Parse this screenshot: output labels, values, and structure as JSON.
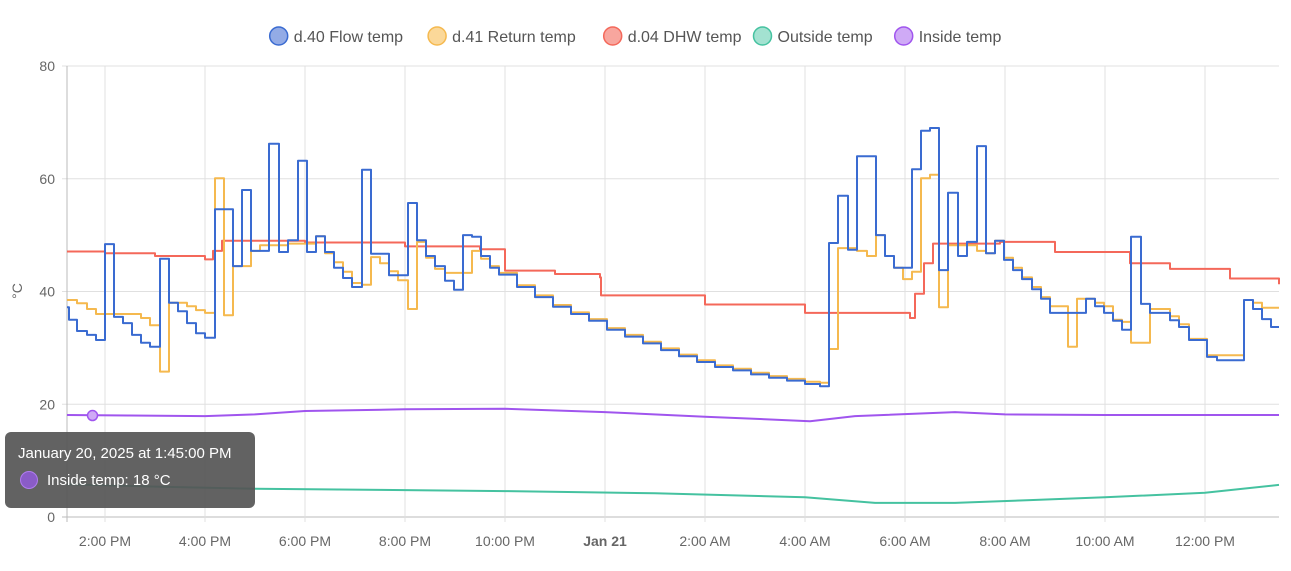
{
  "chart_data": {
    "type": "line",
    "step": true,
    "title": "",
    "xlabel": "",
    "ylabel": "°C",
    "x_unit": "hours since Jan 20, 2025 12:00 PM",
    "xlim": [
      1.24,
      25.48
    ],
    "ylim": [
      0,
      80
    ],
    "grid": true,
    "legend_position": "top-center",
    "y_ticks": [
      {
        "v": 0,
        "label": "0"
      },
      {
        "v": 20,
        "label": "20"
      },
      {
        "v": 40,
        "label": "40"
      },
      {
        "v": 60,
        "label": "60"
      },
      {
        "v": 80,
        "label": "80"
      }
    ],
    "x_ticks": [
      {
        "v": 2,
        "label": "2:00 PM"
      },
      {
        "v": 4,
        "label": "4:00 PM"
      },
      {
        "v": 6,
        "label": "6:00 PM"
      },
      {
        "v": 8,
        "label": "8:00 PM"
      },
      {
        "v": 10,
        "label": "10:00 PM"
      },
      {
        "v": 12,
        "label": "Jan 21",
        "bold": true
      },
      {
        "v": 14,
        "label": "2:00 AM"
      },
      {
        "v": 16,
        "label": "4:00 AM"
      },
      {
        "v": 18,
        "label": "6:00 AM"
      },
      {
        "v": 20,
        "label": "8:00 AM"
      },
      {
        "v": 22,
        "label": "10:00 AM"
      },
      {
        "v": 24,
        "label": "12:00 PM"
      }
    ],
    "series": [
      {
        "name": "d.40 Flow temp",
        "color": "#3a6bd1",
        "fill": "#93abe6",
        "points": [
          [
            1.24,
            37.2
          ],
          [
            1.28,
            35
          ],
          [
            1.44,
            33
          ],
          [
            1.64,
            32.3
          ],
          [
            1.82,
            31.4
          ],
          [
            2.0,
            48.4
          ],
          [
            2.18,
            35.5
          ],
          [
            2.36,
            34.4
          ],
          [
            2.54,
            32.3
          ],
          [
            2.72,
            30.9
          ],
          [
            2.9,
            30.2
          ],
          [
            3.1,
            45.8
          ],
          [
            3.28,
            38
          ],
          [
            3.46,
            36.5
          ],
          [
            3.64,
            34.4
          ],
          [
            3.82,
            32.6
          ],
          [
            4.0,
            31.8
          ],
          [
            4.2,
            54.6
          ],
          [
            4.56,
            44.5
          ],
          [
            4.74,
            58
          ],
          [
            4.92,
            47.2
          ],
          [
            5.28,
            66.2
          ],
          [
            5.48,
            47
          ],
          [
            5.66,
            49.1
          ],
          [
            5.86,
            63.2
          ],
          [
            6.04,
            47
          ],
          [
            6.22,
            49.8
          ],
          [
            6.4,
            47
          ],
          [
            6.58,
            44.2
          ],
          [
            6.76,
            42.4
          ],
          [
            6.94,
            40.8
          ],
          [
            7.14,
            61.6
          ],
          [
            7.32,
            46.7
          ],
          [
            7.68,
            42.9
          ],
          [
            8.06,
            55.7
          ],
          [
            8.24,
            49.1
          ],
          [
            8.42,
            46.3
          ],
          [
            8.6,
            44.5
          ],
          [
            8.8,
            41.9
          ],
          [
            8.98,
            40.3
          ],
          [
            9.16,
            50
          ],
          [
            9.34,
            49.7
          ],
          [
            9.52,
            46.3
          ],
          [
            9.7,
            44.2
          ],
          [
            9.88,
            43
          ],
          [
            10.24,
            40.8
          ],
          [
            10.6,
            39
          ],
          [
            10.96,
            37.3
          ],
          [
            11.32,
            36
          ],
          [
            11.68,
            34.8
          ],
          [
            12.04,
            33.2
          ],
          [
            12.4,
            32
          ],
          [
            12.76,
            30.8
          ],
          [
            13.12,
            29.6
          ],
          [
            13.48,
            28.5
          ],
          [
            13.84,
            27.5
          ],
          [
            14.2,
            26.6
          ],
          [
            14.56,
            26
          ],
          [
            14.92,
            25.3
          ],
          [
            15.28,
            24.7
          ],
          [
            15.64,
            24.2
          ],
          [
            16.0,
            23.6
          ],
          [
            16.3,
            23.2
          ],
          [
            16.48,
            48.6
          ],
          [
            16.66,
            57
          ],
          [
            16.86,
            47.4
          ],
          [
            17.04,
            64
          ],
          [
            17.42,
            50
          ],
          [
            17.6,
            46.3
          ],
          [
            17.78,
            44.2
          ],
          [
            18.14,
            61.7
          ],
          [
            18.32,
            68.5
          ],
          [
            18.5,
            69
          ],
          [
            18.68,
            43.8
          ],
          [
            18.86,
            57.5
          ],
          [
            19.06,
            46.3
          ],
          [
            19.24,
            48.8
          ],
          [
            19.44,
            65.8
          ],
          [
            19.62,
            46.8
          ],
          [
            19.8,
            49
          ],
          [
            19.98,
            45.6
          ],
          [
            20.16,
            43.8
          ],
          [
            20.34,
            42.2
          ],
          [
            20.54,
            40.4
          ],
          [
            20.72,
            38.7
          ],
          [
            20.9,
            36.2
          ],
          [
            21.62,
            38.7
          ],
          [
            21.8,
            37.4
          ],
          [
            21.98,
            36.2
          ],
          [
            22.16,
            34.8
          ],
          [
            22.34,
            33.2
          ],
          [
            22.52,
            49.7
          ],
          [
            22.72,
            37.8
          ],
          [
            22.9,
            36.2
          ],
          [
            23.3,
            34.9
          ],
          [
            23.48,
            33.7
          ],
          [
            23.68,
            31.4
          ],
          [
            24.04,
            28.4
          ],
          [
            24.24,
            27.8
          ],
          [
            24.78,
            38.5
          ],
          [
            24.96,
            36.9
          ],
          [
            25.14,
            35.1
          ],
          [
            25.32,
            33.7
          ]
        ]
      },
      {
        "name": "d.41 Return temp",
        "color": "#f5b94f",
        "fill": "#fbd899",
        "points": [
          [
            1.24,
            38.5
          ],
          [
            1.44,
            37.9
          ],
          [
            1.64,
            36.9
          ],
          [
            1.82,
            36
          ],
          [
            2.72,
            35.3
          ],
          [
            2.9,
            34
          ],
          [
            3.1,
            25.8
          ],
          [
            3.28,
            38
          ],
          [
            3.64,
            37.4
          ],
          [
            3.82,
            36.7
          ],
          [
            4.0,
            36.2
          ],
          [
            4.2,
            60.1
          ],
          [
            4.38,
            35.8
          ],
          [
            4.56,
            44.5
          ],
          [
            4.92,
            47.2
          ],
          [
            5.1,
            48.2
          ],
          [
            5.66,
            48.5
          ],
          [
            6.04,
            48.5
          ],
          [
            6.22,
            49.8
          ],
          [
            6.4,
            46.8
          ],
          [
            6.58,
            45.2
          ],
          [
            6.76,
            43.5
          ],
          [
            6.94,
            41.5
          ],
          [
            7.14,
            41.2
          ],
          [
            7.32,
            46.1
          ],
          [
            7.5,
            45
          ],
          [
            7.68,
            43.6
          ],
          [
            7.86,
            42
          ],
          [
            8.06,
            36.9
          ],
          [
            8.24,
            48.8
          ],
          [
            8.42,
            46
          ],
          [
            8.6,
            44
          ],
          [
            8.8,
            43.3
          ],
          [
            9.34,
            47.2
          ],
          [
            9.52,
            45.8
          ],
          [
            9.7,
            44.5
          ],
          [
            9.88,
            43.3
          ],
          [
            10.24,
            41.1
          ],
          [
            10.6,
            39.3
          ],
          [
            10.96,
            37.6
          ],
          [
            11.32,
            36.3
          ],
          [
            11.68,
            35.1
          ],
          [
            12.04,
            33.5
          ],
          [
            12.4,
            32.3
          ],
          [
            12.76,
            31.1
          ],
          [
            13.12,
            29.9
          ],
          [
            13.48,
            28.8
          ],
          [
            13.84,
            27.8
          ],
          [
            14.2,
            26.9
          ],
          [
            14.56,
            26.3
          ],
          [
            14.92,
            25.6
          ],
          [
            15.28,
            25
          ],
          [
            15.64,
            24.5
          ],
          [
            16.0,
            24
          ],
          [
            16.3,
            23.8
          ],
          [
            16.48,
            29.8
          ],
          [
            16.66,
            47.7
          ],
          [
            17.04,
            47.2
          ],
          [
            17.24,
            46.3
          ],
          [
            17.42,
            50
          ],
          [
            17.6,
            46.3
          ],
          [
            17.78,
            44.2
          ],
          [
            17.96,
            42.2
          ],
          [
            18.14,
            43.5
          ],
          [
            18.32,
            60.1
          ],
          [
            18.5,
            60.7
          ],
          [
            18.68,
            37.2
          ],
          [
            18.86,
            48.2
          ],
          [
            19.44,
            47.2
          ],
          [
            19.62,
            46.8
          ],
          [
            19.8,
            49
          ],
          [
            19.98,
            46
          ],
          [
            20.16,
            44.2
          ],
          [
            20.34,
            42.5
          ],
          [
            20.54,
            40.8
          ],
          [
            20.72,
            39
          ],
          [
            20.9,
            37.4
          ],
          [
            21.26,
            30.2
          ],
          [
            21.44,
            38.7
          ],
          [
            21.8,
            38
          ],
          [
            21.98,
            37.4
          ],
          [
            22.16,
            35
          ],
          [
            22.34,
            34.6
          ],
          [
            22.52,
            30.9
          ],
          [
            22.9,
            36.9
          ],
          [
            23.3,
            35.6
          ],
          [
            23.48,
            34.2
          ],
          [
            23.68,
            31.6
          ],
          [
            24.04,
            28.7
          ],
          [
            24.78,
            38.5
          ],
          [
            24.96,
            38
          ],
          [
            25.14,
            37.1
          ]
        ]
      },
      {
        "name": "d.04 DHW temp",
        "color": "#f4685a",
        "fill": "#f8a69e",
        "points": [
          [
            1.24,
            47.1
          ],
          [
            2.0,
            46.8
          ],
          [
            3.0,
            46.3
          ],
          [
            4.0,
            45.7
          ],
          [
            4.16,
            47.2
          ],
          [
            4.34,
            49
          ],
          [
            6.0,
            48.7
          ],
          [
            8.0,
            48
          ],
          [
            9.5,
            47.5
          ],
          [
            10.0,
            43.7
          ],
          [
            11.0,
            43.1
          ],
          [
            11.9,
            42.5
          ],
          [
            11.92,
            39.3
          ],
          [
            14.0,
            37.7
          ],
          [
            16.0,
            36.2
          ],
          [
            18.1,
            35.3
          ],
          [
            18.2,
            39.6
          ],
          [
            18.38,
            45
          ],
          [
            18.56,
            48.5
          ],
          [
            19.9,
            48.8
          ],
          [
            21.0,
            47
          ],
          [
            22.5,
            45
          ],
          [
            23.3,
            44
          ],
          [
            24.5,
            42.3
          ],
          [
            25.48,
            41.3
          ]
        ]
      },
      {
        "name": "Outside temp",
        "color": "#45c2a0",
        "fill": "#a3e2d1",
        "smooth": true,
        "points": [
          [
            1.24,
            5.8
          ],
          [
            3.0,
            5.4
          ],
          [
            5.0,
            5
          ],
          [
            7.5,
            4.8
          ],
          [
            10.0,
            4.6
          ],
          [
            13.0,
            4.2
          ],
          [
            16.0,
            3.5
          ],
          [
            17.4,
            2.5
          ],
          [
            19.0,
            2.5
          ],
          [
            20.5,
            3
          ],
          [
            22.0,
            3.5
          ],
          [
            24.0,
            4.3
          ],
          [
            25.48,
            5.7
          ]
        ]
      },
      {
        "name": "Inside temp",
        "color": "#a055ee",
        "fill": "#cfaaf6",
        "smooth": true,
        "points": [
          [
            1.24,
            18.1
          ],
          [
            2.5,
            18.0
          ],
          [
            4.0,
            17.9
          ],
          [
            5.0,
            18.2
          ],
          [
            6.0,
            18.8
          ],
          [
            8.0,
            19.1
          ],
          [
            10.0,
            19.2
          ],
          [
            12.0,
            18.6
          ],
          [
            14.0,
            17.8
          ],
          [
            16.1,
            17.0
          ],
          [
            17.0,
            17.9
          ],
          [
            19.0,
            18.6
          ],
          [
            20.0,
            18.2
          ],
          [
            22.0,
            18.1
          ],
          [
            25.48,
            18.1
          ]
        ]
      }
    ],
    "tooltip": {
      "title": "January 20, 2025 at 1:45:00 PM",
      "series": "Inside temp",
      "x": 1.75,
      "value": 18,
      "text": "Inside temp: 18 °C"
    }
  }
}
